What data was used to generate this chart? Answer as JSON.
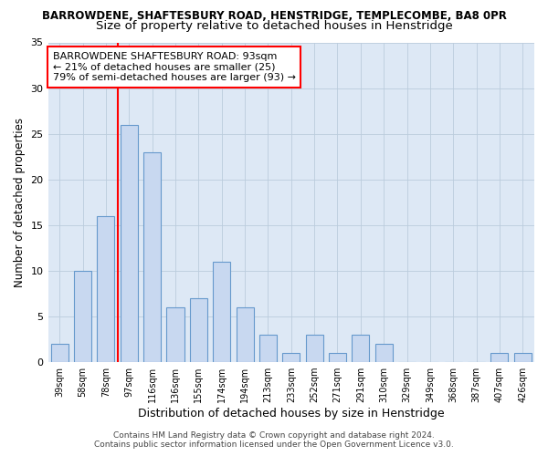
{
  "title1": "BARROWDENE, SHAFTESBURY ROAD, HENSTRIDGE, TEMPLECOMBE, BA8 0PR",
  "title2": "Size of property relative to detached houses in Henstridge",
  "xlabel": "Distribution of detached houses by size in Henstridge",
  "ylabel": "Number of detached properties",
  "categories": [
    "39sqm",
    "58sqm",
    "78sqm",
    "97sqm",
    "116sqm",
    "136sqm",
    "155sqm",
    "174sqm",
    "194sqm",
    "213sqm",
    "233sqm",
    "252sqm",
    "271sqm",
    "291sqm",
    "310sqm",
    "329sqm",
    "349sqm",
    "368sqm",
    "387sqm",
    "407sqm",
    "426sqm"
  ],
  "values": [
    2,
    10,
    16,
    26,
    23,
    6,
    7,
    11,
    6,
    3,
    1,
    3,
    1,
    3,
    2,
    0,
    0,
    0,
    0,
    1,
    1
  ],
  "bar_color": "#c8d8f0",
  "bar_edge_color": "#6699cc",
  "grid_color": "#bbccdd",
  "bg_color": "#dde8f5",
  "red_line_index": 3,
  "annotation_text": "BARROWDENE SHAFTESBURY ROAD: 93sqm\n← 21% of detached houses are smaller (25)\n79% of semi-detached houses are larger (93) →",
  "annotation_box_color": "white",
  "annotation_edge_color": "red",
  "ylim": [
    0,
    35
  ],
  "yticks": [
    0,
    5,
    10,
    15,
    20,
    25,
    30,
    35
  ],
  "footer": "Contains HM Land Registry data © Crown copyright and database right 2024.\nContains public sector information licensed under the Open Government Licence v3.0.",
  "title1_fontsize": 8.5,
  "title2_fontsize": 9.5,
  "xlabel_fontsize": 9,
  "ylabel_fontsize": 8.5,
  "bar_width": 0.75
}
